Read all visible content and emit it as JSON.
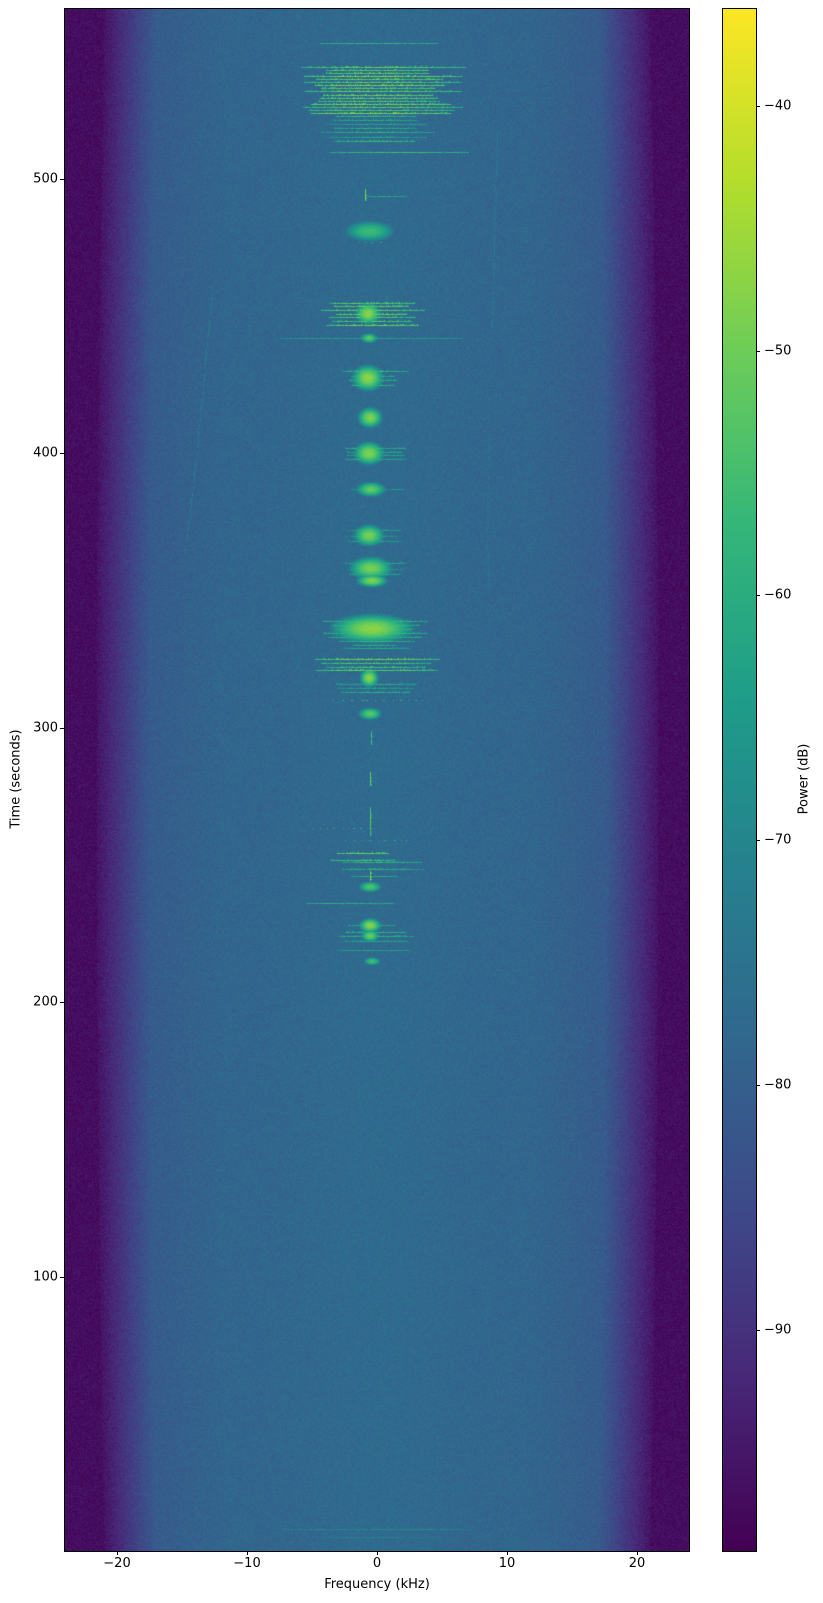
{
  "chart_data": {
    "type": "heatmap",
    "subtype": "spectrogram",
    "title": "",
    "xlabel": "Frequency (kHz)",
    "ylabel": "Time (seconds)",
    "colorbar_label": "Power (dB)",
    "xlim": [
      -24,
      24
    ],
    "ylim": [
      0,
      562
    ],
    "xticks": [
      -20,
      -10,
      0,
      10,
      20
    ],
    "xtick_labels": [
      "−20",
      "−10",
      "0",
      "10",
      "20"
    ],
    "yticks": [
      100,
      200,
      300,
      400,
      500
    ],
    "ytick_labels": [
      "100",
      "200",
      "300",
      "400",
      "500"
    ],
    "colorbar_ticks": [
      -40,
      -50,
      -60,
      -70,
      -80,
      -90
    ],
    "colorbar_tick_labels": [
      "−40",
      "−50",
      "−60",
      "−70",
      "−80",
      "−90"
    ],
    "colorbar_range": [
      -99,
      -36
    ],
    "grid": false,
    "colormap": "viridis",
    "colormap_stops": [
      [
        68,
        1,
        84
      ],
      [
        72,
        40,
        120
      ],
      [
        62,
        74,
        137
      ],
      [
        49,
        104,
        142
      ],
      [
        38,
        130,
        142
      ],
      [
        31,
        158,
        137
      ],
      [
        53,
        183,
        121
      ],
      [
        109,
        205,
        89
      ],
      [
        180,
        222,
        44
      ],
      [
        253,
        231,
        37
      ]
    ],
    "background_noise_db": -78.4,
    "center_boost_db": 1.2,
    "edge_floor_db": -96.8,
    "noise_amplitude_db": 3.4,
    "passband_khz": 17.5,
    "rolloff_end_khz": 21.6,
    "edge_widen_factor": 0.03,
    "events": [
      {
        "type": "t",
        "t": 549.5,
        "f0": -4.4,
        "f1": 4.6,
        "peak": -58
      },
      {
        "type": "h",
        "t0": 524,
        "t1": 541,
        "f0": -6,
        "f1": 7,
        "fc": -0.8,
        "n": 16,
        "peak": -47
      },
      {
        "type": "h",
        "t0": 514,
        "t1": 523,
        "f0": -4.5,
        "f1": 4.5,
        "fc": -0.5,
        "n": 7,
        "peak": -56
      },
      {
        "type": "t",
        "t": 510,
        "f0": -3.6,
        "f1": 7,
        "peak": -56
      },
      {
        "type": "v",
        "t0": 492.5,
        "t1": 496.5,
        "f": -0.9,
        "peak": -48
      },
      {
        "type": "t",
        "t": 494,
        "f0": -0.9,
        "f1": 2.2,
        "peak": -61
      },
      {
        "type": "b",
        "t": 481,
        "fc": -0.6,
        "sf": 0.9,
        "st": 1.8,
        "peak": -56
      },
      {
        "type": "d",
        "t": 477,
        "f0": -1.5,
        "f1": 0.8,
        "peak": -62
      },
      {
        "type": "h",
        "t0": 447,
        "t1": 455,
        "f0": -4.8,
        "f1": 4.2,
        "fc": -0.7,
        "n": 7,
        "peak": -48
      },
      {
        "type": "b",
        "t": 451,
        "fc": -0.7,
        "sf": 0.4,
        "st": 1.6,
        "peak": -47
      },
      {
        "type": "t",
        "t": 442,
        "f0": -7.5,
        "f1": 6.5,
        "peak": -63
      },
      {
        "type": "b",
        "t": 442,
        "fc": -0.6,
        "sf": 0.3,
        "st": 0.8,
        "peak": -52
      },
      {
        "type": "b",
        "t": 427.5,
        "fc": -0.7,
        "sf": 0.5,
        "st": 2.0,
        "peak": -47
      },
      {
        "type": "h",
        "t0": 425,
        "t1": 430,
        "f0": -2.8,
        "f1": 2.5,
        "fc": -0.7,
        "n": 4,
        "peak": -55
      },
      {
        "type": "b",
        "t": 413,
        "fc": -0.5,
        "sf": 0.4,
        "st": 1.6,
        "peak": -48
      },
      {
        "type": "b",
        "t": 400,
        "fc": -0.6,
        "sf": 0.5,
        "st": 1.8,
        "peak": -48
      },
      {
        "type": "h",
        "t0": 398,
        "t1": 402,
        "f0": -3,
        "f1": 3,
        "fc": -0.6,
        "n": 4,
        "peak": -56
      },
      {
        "type": "b",
        "t": 387,
        "fc": -0.5,
        "sf": 0.5,
        "st": 1.2,
        "peak": -51
      },
      {
        "type": "t",
        "t": 387,
        "f0": -2,
        "f1": 2,
        "peak": -63
      },
      {
        "type": "b",
        "t": 370,
        "fc": -0.6,
        "sf": 0.5,
        "st": 1.7,
        "peak": -49
      },
      {
        "type": "h",
        "t0": 368,
        "t1": 372,
        "f0": -2.5,
        "f1": 2.2,
        "fc": -0.6,
        "n": 3,
        "peak": -57
      },
      {
        "type": "b",
        "t": 358,
        "fc": -0.5,
        "sf": 0.7,
        "st": 1.8,
        "peak": -49
      },
      {
        "type": "h",
        "t0": 356,
        "t1": 360,
        "f0": -2.8,
        "f1": 2.6,
        "fc": -0.5,
        "n": 3,
        "peak": -56
      },
      {
        "type": "b",
        "t": 353.5,
        "fc": -0.4,
        "sf": 0.5,
        "st": 1.0,
        "peak": -48
      },
      {
        "type": "b",
        "t": 336,
        "fc": -0.4,
        "sf": 1.3,
        "st": 2.2,
        "peak": -47
      },
      {
        "type": "h",
        "t0": 333,
        "t1": 339,
        "f0": -4.6,
        "f1": 4.4,
        "fc": -0.4,
        "n": 5,
        "peak": -53
      },
      {
        "type": "h",
        "t0": 329,
        "t1": 331.5,
        "f0": -3,
        "f1": 3,
        "fc": -0.5,
        "n": 3,
        "peak": -55
      },
      {
        "type": "h",
        "t0": 321,
        "t1": 325,
        "f0": -4.8,
        "f1": 4.8,
        "fc": -0.6,
        "n": 4,
        "peak": -48
      },
      {
        "type": "b",
        "t": 318,
        "fc": -0.6,
        "sf": 0.3,
        "st": 1.4,
        "peak": -47
      },
      {
        "type": "h",
        "t0": 313,
        "t1": 316,
        "f0": -4,
        "f1": 4,
        "fc": -0.5,
        "n": 3,
        "peak": -57
      },
      {
        "type": "d",
        "t": 310,
        "f0": -3.5,
        "f1": 3.5,
        "peak": -59
      },
      {
        "type": "b",
        "t": 305,
        "fc": -0.5,
        "sf": 0.4,
        "st": 1.0,
        "peak": -52
      },
      {
        "type": "v",
        "t0": 294,
        "t1": 299,
        "f": -0.5,
        "peak": -55
      },
      {
        "type": "v",
        "t0": 279,
        "t1": 284,
        "f": -0.55,
        "peak": -52
      },
      {
        "type": "v",
        "t0": 261,
        "t1": 271,
        "f": -0.55,
        "peak": -53
      },
      {
        "type": "d",
        "t": 263.5,
        "f0": -5,
        "f1": -0.5,
        "peak": -60
      },
      {
        "type": "d",
        "t": 259,
        "f0": -2.5,
        "f1": 2.5,
        "peak": -60
      },
      {
        "type": "h",
        "t0": 252,
        "t1": 254.5,
        "f0": -4.2,
        "f1": 1.8,
        "fc": -1,
        "n": 2,
        "peak": -49
      },
      {
        "type": "h",
        "t0": 248.5,
        "t1": 251,
        "f0": -3,
        "f1": 4,
        "fc": -0.5,
        "n": 2,
        "peak": -55
      },
      {
        "type": "v",
        "t0": 244.5,
        "t1": 248,
        "f": -0.55,
        "peak": -47
      },
      {
        "type": "t",
        "t": 246,
        "f0": -2,
        "f1": 1.5,
        "peak": -60
      },
      {
        "type": "b",
        "t": 242,
        "fc": -0.5,
        "sf": 0.4,
        "st": 0.9,
        "peak": -53
      },
      {
        "type": "t",
        "t": 236,
        "f0": -5.5,
        "f1": 1.2,
        "peak": -58
      },
      {
        "type": "b",
        "t": 228,
        "fc": -0.5,
        "sf": 0.35,
        "st": 1.1,
        "peak": -47
      },
      {
        "type": "t",
        "t": 228,
        "f0": -2.2,
        "f1": 1.4,
        "peak": -60
      },
      {
        "type": "h",
        "t0": 222.5,
        "t1": 225.5,
        "f0": -4,
        "f1": 4.2,
        "fc": -0.5,
        "n": 3,
        "peak": -56
      },
      {
        "type": "b",
        "t": 224,
        "fc": -0.5,
        "sf": 0.3,
        "st": 0.9,
        "peak": -50
      },
      {
        "type": "t",
        "t": 219,
        "f0": -3,
        "f1": 2.5,
        "peak": -62
      },
      {
        "type": "b",
        "t": 215,
        "fc": -0.4,
        "sf": 0.3,
        "st": 0.7,
        "peak": -55
      },
      {
        "type": "t",
        "t": 8,
        "f0": -7.3,
        "f1": 7.2,
        "peak": -68
      },
      {
        "type": "t",
        "t": 5,
        "f0": -5,
        "f1": 5,
        "peak": -71
      }
    ],
    "drift_traces": [
      {
        "peak": -72,
        "pts": [
          [
            -12.6,
            462
          ],
          [
            -13.2,
            432
          ],
          [
            -13.8,
            402
          ],
          [
            -14.4,
            376
          ],
          [
            -14.8,
            364
          ]
        ]
      },
      {
        "peak": -73,
        "pts": [
          [
            9.3,
            519
          ],
          [
            9.1,
            490
          ],
          [
            9.0,
            465
          ],
          [
            8.9,
            446
          ]
        ]
      },
      {
        "peak": -74,
        "pts": [
          [
            8.7,
            408
          ],
          [
            8.5,
            376
          ],
          [
            8.6,
            350
          ]
        ]
      }
    ]
  },
  "figure": {
    "background_color": "#ffffff",
    "spine_color": "#000000",
    "dark_edge_color": "#450c5e",
    "mid_background_color": "#31668d",
    "bright_feature_color": "#55c467"
  }
}
